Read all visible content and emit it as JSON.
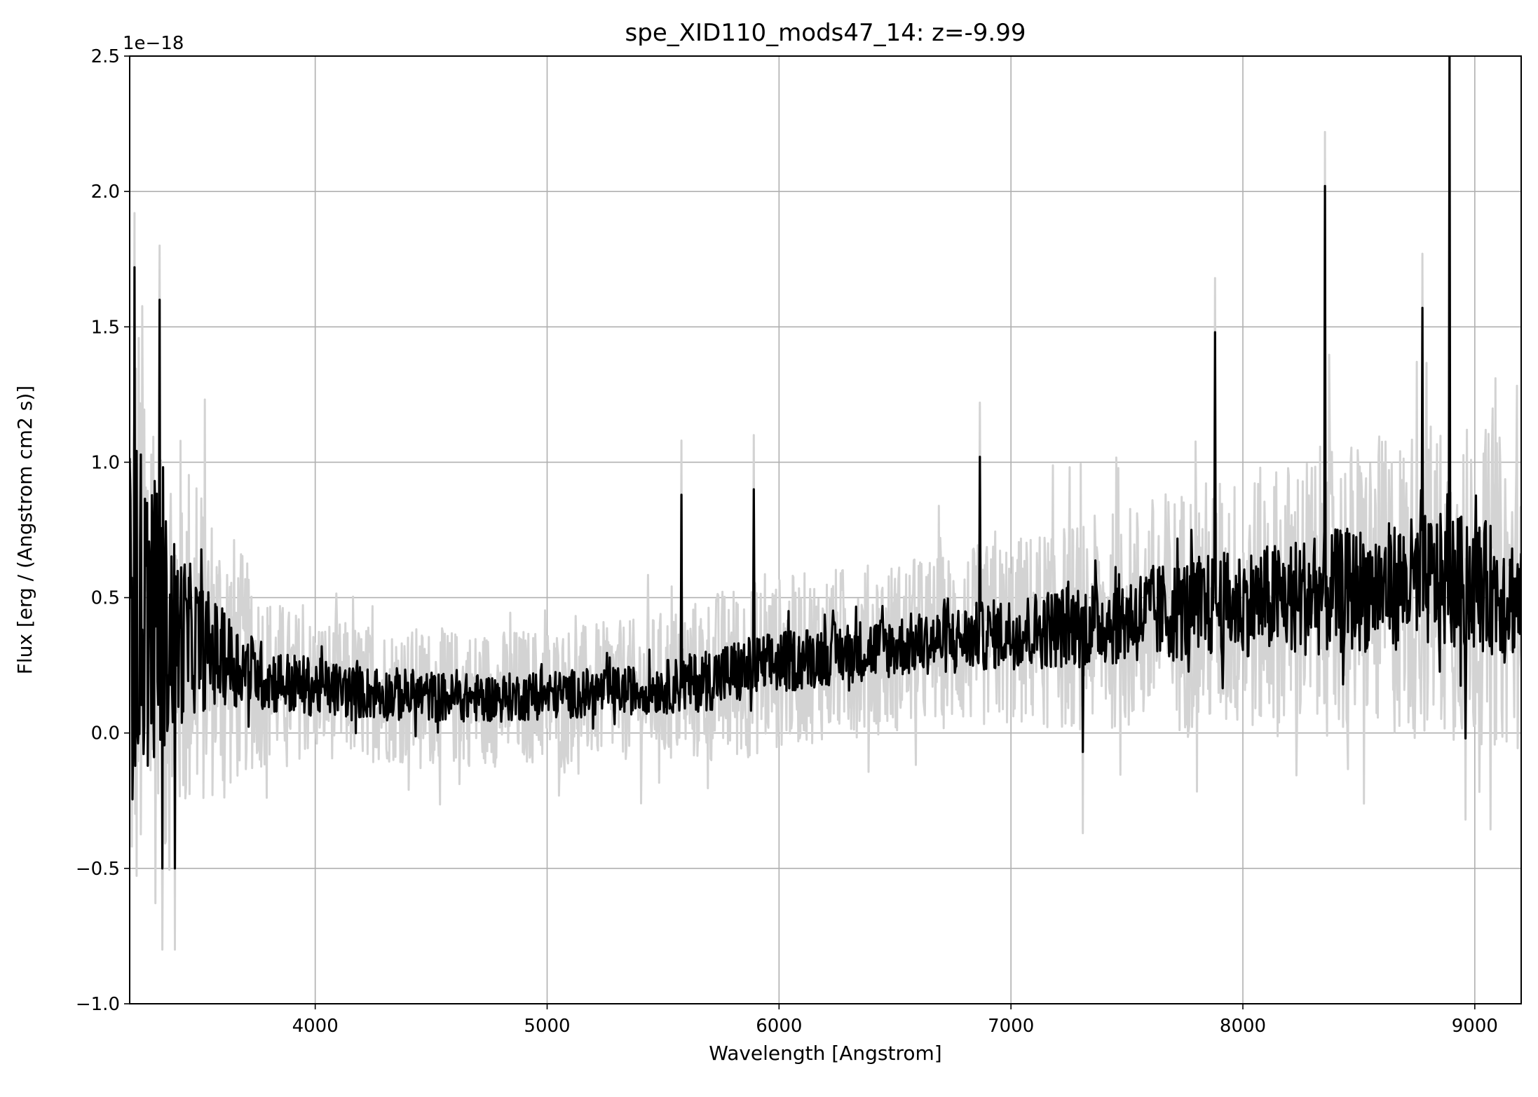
{
  "chart_data": {
    "type": "line",
    "title": "spe_XID110_mods47_14: z=-9.99",
    "xlabel": "Wavelength [Angstrom]",
    "ylabel": "Flux [erg / (Angstrom cm2 s)]",
    "y_offset_text": "1e−18",
    "xlim": [
      3200,
      9200
    ],
    "ylim": [
      -1.0,
      2.5
    ],
    "x_ticks": [
      4000,
      5000,
      6000,
      7000,
      8000,
      9000
    ],
    "x_tick_labels": [
      "4000",
      "5000",
      "6000",
      "7000",
      "8000",
      "9000"
    ],
    "y_ticks": [
      -1.0,
      -0.5,
      0.0,
      0.5,
      1.0,
      1.5,
      2.0,
      2.5
    ],
    "y_tick_labels": [
      "−1.0",
      "−0.5",
      "0.0",
      "0.5",
      "1.0",
      "1.5",
      "2.0",
      "2.5"
    ],
    "grid": true,
    "series": [
      {
        "role": "noisy-spectrum",
        "color": "#d3d3d3",
        "x": [
          3200,
          3250,
          3300,
          3350,
          3400,
          3450,
          3500,
          3550,
          3600,
          3650,
          3700,
          3800,
          3900,
          4000,
          4200,
          4400,
          4600,
          4800,
          5000,
          5200,
          5400,
          5600,
          5800,
          6000,
          6200,
          6400,
          6600,
          6800,
          7000,
          7200,
          7400,
          7600,
          7800,
          8000,
          8200,
          8400,
          8600,
          8800,
          9000,
          9200
        ],
        "y": [
          0.4,
          0.45,
          0.42,
          0.38,
          0.36,
          0.35,
          0.33,
          0.3,
          0.28,
          0.26,
          0.24,
          0.2,
          0.18,
          0.17,
          0.15,
          0.14,
          0.13,
          0.13,
          0.14,
          0.15,
          0.16,
          0.18,
          0.22,
          0.26,
          0.29,
          0.31,
          0.33,
          0.35,
          0.37,
          0.39,
          0.41,
          0.44,
          0.46,
          0.48,
          0.5,
          0.52,
          0.54,
          0.56,
          0.55,
          0.5
        ],
        "scatter_amplitude": [
          1.6,
          1.5,
          1.4,
          1.2,
          1.0,
          0.9,
          0.8,
          0.7,
          0.65,
          0.6,
          0.5,
          0.4,
          0.35,
          0.33,
          0.32,
          0.32,
          0.32,
          0.32,
          0.32,
          0.32,
          0.33,
          0.38,
          0.42,
          0.4,
          0.4,
          0.4,
          0.4,
          0.42,
          0.44,
          0.48,
          0.5,
          0.55,
          0.6,
          0.6,
          0.65,
          0.7,
          0.7,
          0.75,
          0.75,
          0.7
        ]
      },
      {
        "role": "smoothed-spectrum",
        "color": "#000000",
        "x": [
          3200,
          3250,
          3300,
          3350,
          3400,
          3450,
          3500,
          3550,
          3600,
          3650,
          3700,
          3800,
          3900,
          4000,
          4200,
          4400,
          4600,
          4800,
          5000,
          5200,
          5400,
          5600,
          5800,
          6000,
          6200,
          6400,
          6600,
          6800,
          7000,
          7200,
          7400,
          7600,
          7800,
          8000,
          8200,
          8400,
          8600,
          8800,
          9000,
          9200
        ],
        "y": [
          0.4,
          0.45,
          0.42,
          0.38,
          0.36,
          0.35,
          0.33,
          0.3,
          0.28,
          0.26,
          0.24,
          0.2,
          0.18,
          0.17,
          0.15,
          0.14,
          0.13,
          0.13,
          0.14,
          0.15,
          0.16,
          0.18,
          0.22,
          0.26,
          0.29,
          0.31,
          0.33,
          0.35,
          0.37,
          0.39,
          0.41,
          0.44,
          0.46,
          0.48,
          0.5,
          0.52,
          0.54,
          0.56,
          0.55,
          0.5
        ],
        "scatter_amplitude": [
          0.75,
          0.7,
          0.6,
          0.5,
          0.4,
          0.32,
          0.28,
          0.24,
          0.2,
          0.18,
          0.16,
          0.14,
          0.13,
          0.12,
          0.11,
          0.11,
          0.1,
          0.1,
          0.1,
          0.1,
          0.1,
          0.12,
          0.14,
          0.13,
          0.13,
          0.13,
          0.13,
          0.14,
          0.15,
          0.17,
          0.18,
          0.2,
          0.22,
          0.22,
          0.24,
          0.26,
          0.26,
          0.28,
          0.28,
          0.25
        ]
      }
    ],
    "notable_peaks": [
      {
        "x": 3220,
        "y": 1.72
      },
      {
        "x": 3330,
        "y": 1.6
      },
      {
        "x": 3340,
        "y": -0.5
      },
      {
        "x": 3395,
        "y": -0.5
      },
      {
        "x": 5580,
        "y": 0.88
      },
      {
        "x": 5890,
        "y": 0.9
      },
      {
        "x": 6865,
        "y": 1.02
      },
      {
        "x": 7310,
        "y": -0.07
      },
      {
        "x": 7880,
        "y": 1.48
      },
      {
        "x": 8355,
        "y": 2.02
      },
      {
        "x": 8775,
        "y": 1.57
      },
      {
        "x": 8890,
        "y": 2.5
      },
      {
        "x": 8960,
        "y": -0.02
      }
    ]
  }
}
